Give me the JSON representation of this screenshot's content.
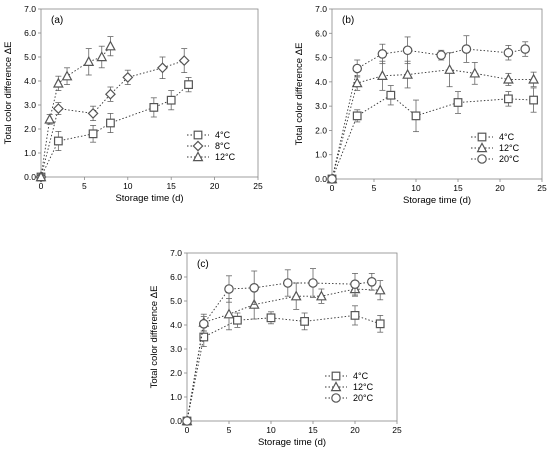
{
  "chart_data": [
    {
      "type": "scatter",
      "panel_label": "(a)",
      "xlabel": "Storage time (d)",
      "ylabel": "Total color difference ΔE",
      "xlim": [
        0,
        25
      ],
      "ylim": [
        0,
        7
      ],
      "xticks": [
        "0",
        "5",
        "10",
        "15",
        "20",
        "25"
      ],
      "yticks": [
        "0.0",
        "1.0",
        "2.0",
        "3.0",
        "4.0",
        "5.0",
        "6.0",
        "7.0"
      ],
      "grid": false,
      "legend_position": "bottom-right",
      "series": [
        {
          "name": "4°C",
          "marker": "square",
          "x": [
            0,
            2,
            6,
            8,
            13,
            15,
            17
          ],
          "y": [
            0,
            1.5,
            1.8,
            2.25,
            2.9,
            3.2,
            3.85
          ],
          "err": [
            0.05,
            0.4,
            0.35,
            0.4,
            0.4,
            0.4,
            0.3
          ]
        },
        {
          "name": "8°C",
          "marker": "diamond",
          "x": [
            0,
            2,
            6,
            8,
            10,
            14,
            16.5
          ],
          "y": [
            0,
            2.85,
            2.65,
            3.45,
            4.15,
            4.55,
            4.85
          ],
          "err": [
            0.05,
            0.25,
            0.3,
            0.3,
            0.3,
            0.45,
            0.5
          ]
        },
        {
          "name": "12°C",
          "marker": "triangle",
          "x": [
            0,
            1,
            2,
            3,
            5.5,
            7,
            8
          ],
          "y": [
            0,
            2.4,
            3.9,
            4.2,
            4.8,
            5.0,
            5.45
          ],
          "err": [
            0.05,
            0.2,
            0.3,
            0.35,
            0.55,
            0.45,
            0.4
          ]
        }
      ]
    },
    {
      "type": "scatter",
      "panel_label": "(b)",
      "xlabel": "Storage time (d)",
      "ylabel": "Total color difference ΔE",
      "xlim": [
        0,
        25
      ],
      "ylim": [
        0,
        7
      ],
      "xticks": [
        "0",
        "5",
        "10",
        "15",
        "20",
        "25"
      ],
      "yticks": [
        "0.0",
        "1.0",
        "2.0",
        "3.0",
        "4.0",
        "5.0",
        "6.0",
        "7.0"
      ],
      "grid": false,
      "legend_position": "bottom-right",
      "series": [
        {
          "name": "4°C",
          "marker": "square",
          "x": [
            0,
            3,
            7,
            10,
            15,
            21,
            24
          ],
          "y": [
            0,
            2.6,
            3.45,
            2.6,
            3.15,
            3.3,
            3.25
          ],
          "err": [
            0.05,
            0.25,
            0.4,
            0.65,
            0.45,
            0.3,
            0.5
          ]
        },
        {
          "name": "12°C",
          "marker": "triangle",
          "x": [
            0,
            3,
            6,
            9,
            14,
            17,
            21,
            24
          ],
          "y": [
            0,
            3.95,
            4.25,
            4.3,
            4.5,
            4.35,
            4.1,
            4.1
          ],
          "err": [
            0.05,
            0.3,
            0.6,
            0.55,
            0.7,
            0.45,
            0.25,
            0.3
          ]
        },
        {
          "name": "20°C",
          "marker": "circle",
          "x": [
            0,
            3,
            6,
            9,
            13,
            16,
            21,
            23
          ],
          "y": [
            0,
            4.55,
            5.15,
            5.3,
            5.1,
            5.35,
            5.2,
            5.35
          ],
          "err": [
            0.05,
            0.35,
            0.4,
            0.55,
            0.2,
            0.55,
            0.3,
            0.3
          ]
        }
      ]
    },
    {
      "type": "scatter",
      "panel_label": "(c)",
      "xlabel": "Storage time (d)",
      "ylabel": "Total color difference ΔE",
      "xlim": [
        0,
        25
      ],
      "ylim": [
        0,
        7
      ],
      "xticks": [
        "0",
        "5",
        "10",
        "15",
        "20",
        "25"
      ],
      "yticks": [
        "0.0",
        "1.0",
        "2.0",
        "3.0",
        "4.0",
        "5.0",
        "6.0",
        "7.0"
      ],
      "grid": false,
      "legend_position": "bottom-right",
      "series": [
        {
          "name": "4°C",
          "marker": "square",
          "x": [
            0,
            2,
            6,
            10,
            14,
            20,
            23
          ],
          "y": [
            0,
            3.5,
            4.2,
            4.3,
            4.15,
            4.4,
            4.05
          ],
          "err": [
            0.05,
            0.4,
            0.3,
            0.25,
            0.35,
            0.4,
            0.35
          ]
        },
        {
          "name": "12°C",
          "marker": "triangle",
          "x": [
            0,
            2,
            5,
            8,
            13,
            16,
            20,
            23
          ],
          "y": [
            0,
            4.1,
            4.45,
            4.85,
            5.2,
            5.2,
            5.5,
            5.45
          ],
          "err": [
            0.05,
            0.35,
            0.65,
            0.6,
            0.55,
            0.3,
            0.3,
            0.4
          ]
        },
        {
          "name": "20°C",
          "marker": "circle",
          "x": [
            0,
            2,
            5,
            8,
            12,
            15,
            20,
            22
          ],
          "y": [
            0,
            4.05,
            5.5,
            5.55,
            5.75,
            5.75,
            5.7,
            5.8
          ],
          "err": [
            0.05,
            0.3,
            0.55,
            0.7,
            0.55,
            0.6,
            0.45,
            0.35
          ]
        }
      ]
    }
  ]
}
